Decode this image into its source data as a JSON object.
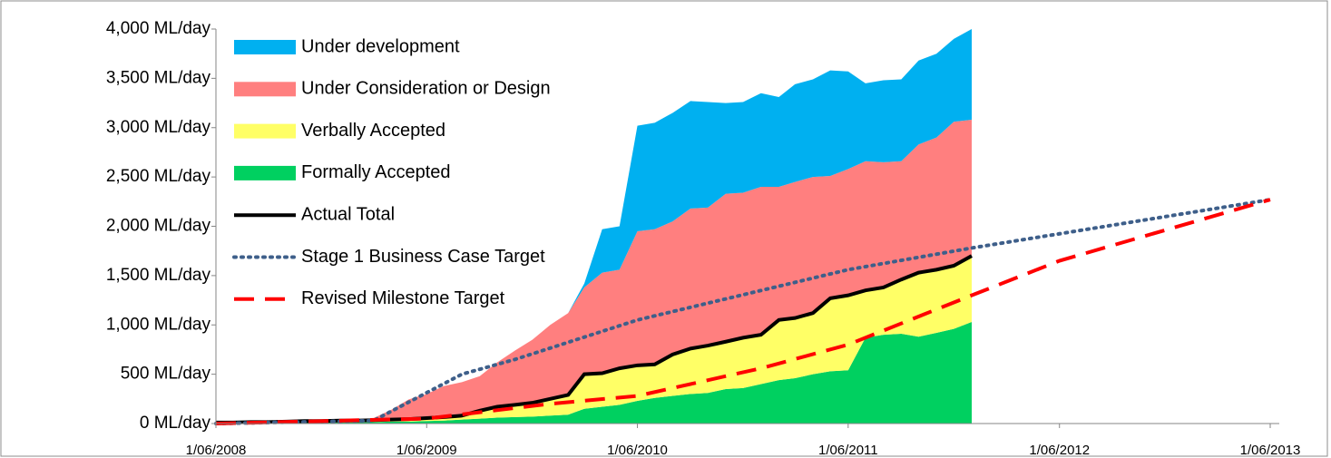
{
  "chart_data": {
    "type": "stacked_area",
    "legend": "upper left",
    "grid": false,
    "x": [
      "1/06/2008",
      "1/07/2008",
      "1/08/2008",
      "1/09/2008",
      "1/10/2008",
      "1/11/2008",
      "1/12/2008",
      "1/01/2009",
      "1/02/2009",
      "1/03/2009",
      "1/04/2009",
      "1/05/2009",
      "1/06/2009",
      "1/07/2009",
      "1/08/2009",
      "1/09/2009",
      "1/10/2009",
      "1/11/2009",
      "1/12/2009",
      "1/01/2010",
      "1/02/2010",
      "1/03/2010",
      "1/04/2010",
      "1/05/2010",
      "1/06/2010",
      "1/07/2010",
      "1/08/2010",
      "1/09/2010",
      "1/10/2010",
      "1/11/2010",
      "1/12/2010",
      "1/01/2011",
      "1/02/2011",
      "1/03/2011",
      "1/04/2011",
      "1/05/2011",
      "1/06/2011",
      "1/07/2011",
      "1/08/2011",
      "1/09/2011",
      "1/10/2011",
      "1/11/2011",
      "1/12/2011",
      "1/01/2012"
    ],
    "xlim": [
      "1/06/2008",
      "1/06/2013"
    ],
    "xticks": [
      "1/06/2008",
      "1/06/2009",
      "1/06/2010",
      "1/06/2011",
      "1/06/2012",
      "1/06/2013"
    ],
    "ylim": [
      0,
      4000
    ],
    "yticks": [
      {
        "value": 0,
        "label": "0 ML/day"
      },
      {
        "value": 500,
        "label": "500 ML/day"
      },
      {
        "value": 1000,
        "label": "1,000 ML/day"
      },
      {
        "value": 1500,
        "label": "1,500 ML/day"
      },
      {
        "value": 2000,
        "label": "2,000 ML/day"
      },
      {
        "value": 2500,
        "label": "2,500 ML/day"
      },
      {
        "value": 3000,
        "label": "3,000 ML/day"
      },
      {
        "value": 3500,
        "label": "3,500 ML/day"
      },
      {
        "value": 4000,
        "label": "4,000 ML/day"
      }
    ],
    "series": [
      {
        "name": "Under development",
        "style": "area",
        "color": "#00b0f0",
        "values": [
          0,
          0,
          0,
          0,
          0,
          0,
          0,
          0,
          0,
          0,
          0,
          0,
          0,
          0,
          0,
          0,
          0,
          0,
          0,
          0,
          0,
          40,
          440,
          440,
          1070,
          1080,
          1100,
          1090,
          1070,
          920,
          920,
          950,
          910,
          990,
          990,
          1070,
          990,
          790,
          830,
          830,
          850,
          850,
          840,
          920
        ]
      },
      {
        "name": "Under Consideration or Design",
        "style": "area",
        "color": "#ff7f7f",
        "values": [
          0,
          0,
          0,
          0,
          0,
          0,
          0,
          0,
          0,
          20,
          100,
          200,
          245,
          315,
          340,
          350,
          450,
          550,
          640,
          750,
          830,
          880,
          1020,
          1000,
          1360,
          1370,
          1350,
          1420,
          1400,
          1500,
          1470,
          1500,
          1350,
          1380,
          1380,
          1240,
          1280,
          1310,
          1270,
          1200,
          1300,
          1340,
          1460,
          1380
        ]
      },
      {
        "name": "Verbally Accepted",
        "style": "area",
        "color": "#ffff66",
        "values": [
          5,
          5,
          10,
          10,
          15,
          15,
          15,
          20,
          20,
          20,
          20,
          25,
          30,
          35,
          40,
          80,
          110,
          125,
          140,
          170,
          200,
          350,
          340,
          370,
          360,
          340,
          420,
          460,
          480,
          480,
          510,
          500,
          610,
          610,
          620,
          740,
          760,
          480,
          480,
          550,
          650,
          640,
          640,
          670
        ]
      },
      {
        "name": "Formally Accepted",
        "style": "area",
        "color": "#00d060",
        "values": [
          5,
          5,
          5,
          5,
          5,
          10,
          10,
          10,
          10,
          15,
          20,
          20,
          25,
          30,
          40,
          50,
          60,
          65,
          70,
          80,
          90,
          150,
          170,
          190,
          230,
          260,
          280,
          300,
          310,
          350,
          360,
          400,
          440,
          460,
          500,
          530,
          540,
          870,
          900,
          910,
          880,
          920,
          960,
          1030
        ]
      },
      {
        "name": "Actual Total",
        "style": "solid",
        "color": "#000000",
        "values": [
          10,
          10,
          15,
          15,
          20,
          25,
          25,
          30,
          30,
          35,
          40,
          45,
          55,
          65,
          80,
          130,
          170,
          190,
          210,
          250,
          290,
          500,
          510,
          560,
          590,
          600,
          700,
          760,
          790,
          830,
          870,
          900,
          1050,
          1070,
          1120,
          1270,
          1300,
          1350,
          1380,
          1460,
          1530,
          1560,
          1600,
          1700
        ]
      },
      {
        "name": "Stage 1 Business Case Target",
        "style": "dotted",
        "color": "#3e5f8a",
        "x": [
          "1/06/2008",
          "1/03/2009",
          "1/08/2009",
          "1/11/2009",
          "1/06/2010",
          "1/06/2011",
          "1/01/2012",
          "1/06/2013"
        ],
        "values": [
          0,
          30,
          500,
          650,
          1050,
          1560,
          1780,
          2270
        ]
      },
      {
        "name": "Revised Milestone Target",
        "style": "dashed",
        "color": "#ff0000",
        "x": [
          "1/06/2008",
          "1/06/2009",
          "1/01/2010",
          "1/06/2010",
          "1/01/2011",
          "1/06/2011",
          "1/01/2012",
          "1/06/2012",
          "1/06/2013"
        ],
        "values": [
          0,
          50,
          200,
          280,
          560,
          800,
          1300,
          1650,
          2270
        ]
      }
    ]
  }
}
